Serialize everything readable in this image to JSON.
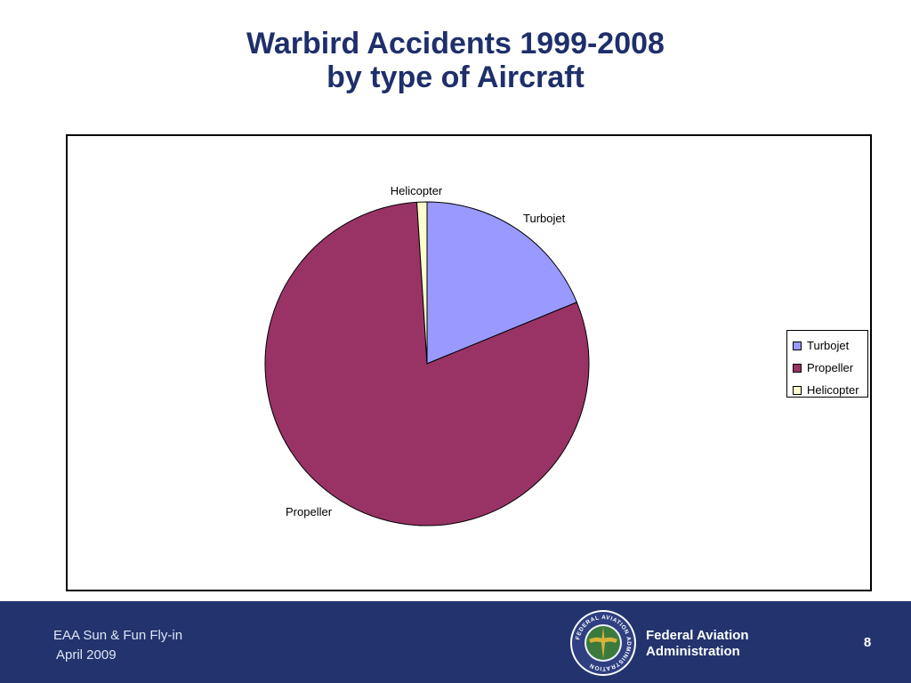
{
  "slide": {
    "title_line1": "Warbird Accidents 1999-2008",
    "title_line2": "by type of  Aircraft"
  },
  "chart_data": {
    "type": "pie",
    "title": "",
    "slices": [
      {
        "label": "Turbojet",
        "value": 18.8,
        "color": "#9999ff"
      },
      {
        "label": "Propeller",
        "value": 80.2,
        "color": "#993366"
      },
      {
        "label": "Helicopter",
        "value": 1.0,
        "color": "#ffffcc"
      }
    ],
    "legend": {
      "position": "right",
      "entries": [
        "Turbojet",
        "Propeller",
        "Helicopter"
      ]
    }
  },
  "footer": {
    "event": "EAA Sun & Fun Fly-in",
    "date": "April 2009",
    "agency_line1": "Federal Aviation",
    "agency_line2": "Administration",
    "page_number": "8",
    "seal_text": "FEDERAL AVIATION ADMINISTRATION",
    "background_color": "#22336e"
  }
}
